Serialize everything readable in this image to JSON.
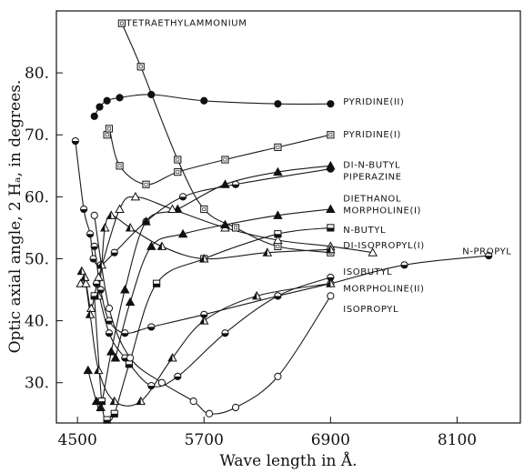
{
  "chart_data": {
    "type": "line",
    "xlabel": "Wave length in Å.",
    "ylabel": "Optic axial angle, 2 Hₐ, in degrees.",
    "xlim": [
      4300,
      8700
    ],
    "ylim": [
      23.5,
      90
    ],
    "xticks": [
      4500,
      5700,
      6900,
      8100
    ],
    "yticks": [
      30,
      40,
      50,
      60,
      70,
      80
    ],
    "grid": false,
    "series": [
      {
        "name": "TETRAETHYLAMMONIUM",
        "marker": "square-open",
        "x": [
          4920,
          5100,
          5450,
          5700,
          6000,
          6400,
          6900
        ],
        "y": [
          88,
          81,
          66,
          58,
          55,
          52,
          51
        ]
      },
      {
        "name": "PYRIDINE(II)",
        "marker": "circle-filled",
        "x": [
          4660,
          4710,
          4780,
          4900,
          5200,
          5700,
          6400,
          6900
        ],
        "y": [
          73,
          74.5,
          75.5,
          76,
          76.5,
          75.5,
          75,
          75
        ]
      },
      {
        "name": "PYRIDINE(I)",
        "marker": "square-open",
        "x": [
          4780,
          4800,
          4900,
          5150,
          5450,
          5900,
          6400,
          6900
        ],
        "y": [
          70,
          71,
          65,
          62,
          64,
          66,
          68,
          70
        ]
      },
      {
        "name": "DI-N-BUTYL PIPERAZINE",
        "marker": "half-circle",
        "x": [
          4480,
          4560,
          4620,
          4650,
          4720,
          4850,
          5150,
          5500,
          6000,
          6900
        ],
        "y": [
          69,
          58,
          54,
          50,
          49,
          51,
          56,
          60,
          62,
          64.5
        ]
      },
      {
        "name": "DIETHANOL MORPHOLINE(I)",
        "marker": "triangle-filled",
        "x": [
          4600,
          4680,
          4720,
          4820,
          4950,
          5150,
          5450,
          5900,
          6400,
          6900
        ],
        "y": [
          32,
          27,
          26,
          35,
          45,
          56,
          58,
          62,
          64,
          65
        ]
      },
      {
        "name": "N-BUTYL",
        "marker": "square-half",
        "x": [
          4660,
          4730,
          4780,
          4850,
          4990,
          5250,
          5700,
          6400,
          6900
        ],
        "y": [
          44,
          27,
          24,
          25,
          33,
          46,
          50,
          54,
          55
        ]
      },
      {
        "name": "DI-ISOPROPYL(I)",
        "marker": "triangle-open",
        "x": [
          4530,
          4580,
          4630,
          4700,
          4900,
          5050,
          5400,
          5900,
          6400,
          6900,
          7300
        ],
        "y": [
          46,
          46,
          42,
          47,
          58,
          60,
          58,
          55,
          53,
          52,
          51
        ]
      },
      {
        "name": "N-PROPYL",
        "marker": "half-circle",
        "x": [
          4660,
          4720,
          4800,
          4950,
          5200,
          5700,
          6400,
          6900,
          7600,
          8400
        ],
        "y": [
          52,
          45,
          40,
          38,
          39,
          41,
          44,
          46,
          49,
          50.5
        ]
      },
      {
        "name": "ISOBUTYL",
        "marker": "half-circle",
        "x": [
          4680,
          4800,
          4950,
          5200,
          5450,
          5900,
          6400,
          6900
        ],
        "y": [
          46,
          38,
          34,
          29.5,
          31,
          38,
          44,
          47
        ]
      },
      {
        "name": "MORPHOLINE(II)",
        "marker": "triangle-half",
        "x": [
          4540,
          4570,
          4620,
          4700,
          4850,
          5100,
          5400,
          5700,
          6200,
          6900
        ],
        "y": [
          48,
          47,
          41,
          32,
          27,
          27,
          34,
          40,
          44,
          46
        ]
      },
      {
        "name": "ISOPROPYL",
        "marker": "circle-open",
        "x": [
          4660,
          4800,
          5000,
          5300,
          5600,
          5750,
          6000,
          6400,
          6900
        ],
        "y": [
          57,
          42,
          34,
          30,
          27,
          25,
          26,
          31,
          44
        ]
      },
      {
        "name": "",
        "marker": "triangle-filled",
        "x": [
          4860,
          5000,
          5200,
          5500,
          5900,
          6400,
          6900
        ],
        "y": [
          34,
          43,
          52,
          54,
          55.5,
          57,
          58
        ]
      },
      {
        "name": "",
        "marker": "triangle-half",
        "x": [
          4700,
          4730,
          4760,
          4820,
          5000,
          5300,
          5700,
          6300,
          6900
        ],
        "y": [
          44,
          49,
          55,
          57,
          55,
          52,
          50,
          51,
          51.5
        ]
      }
    ]
  }
}
